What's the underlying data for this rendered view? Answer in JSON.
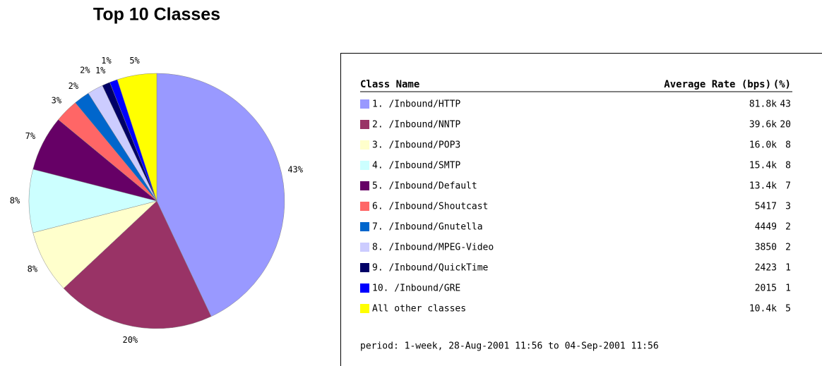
{
  "chart_data": {
    "type": "pie",
    "title": "Top 10 Classes",
    "categories": [
      "1. /Inbound/HTTP",
      "2. /Inbound/NNTP",
      "3. /Inbound/POP3",
      "4. /Inbound/SMTP",
      "5. /Inbound/Default",
      "6. /Inbound/Shoutcast",
      "7. /Inbound/Gnutella",
      "8. /Inbound/MPEG-Video",
      "9. /Inbound/QuickTime",
      "10. /Inbound/GRE",
      "All other classes"
    ],
    "values": [
      43,
      20,
      8,
      8,
      7,
      3,
      2,
      2,
      1,
      1,
      5
    ],
    "value_labels": [
      "43%",
      "20%",
      "8%",
      "8%",
      "7%",
      "3%",
      "2%",
      "2%",
      "1%",
      "1%",
      "5%"
    ],
    "colors": [
      "#9999ff",
      "#993366",
      "#ffffcc",
      "#ccffff",
      "#660066",
      "#ff6666",
      "#0066cc",
      "#ccccff",
      "#000066",
      "#0000ff",
      "#ffff00"
    ]
  },
  "table": {
    "headers": [
      "Class Name",
      "Average Rate (bps)",
      "(%)"
    ],
    "rates": [
      "81.8k",
      "39.6k",
      "16.0k",
      "15.4k",
      "13.4k",
      "5417",
      "4449",
      "3850",
      "2423",
      "2015",
      "10.4k"
    ],
    "period": "period: 1-week, 28-Aug-2001 11:56 to 04-Sep-2001 11:56"
  }
}
